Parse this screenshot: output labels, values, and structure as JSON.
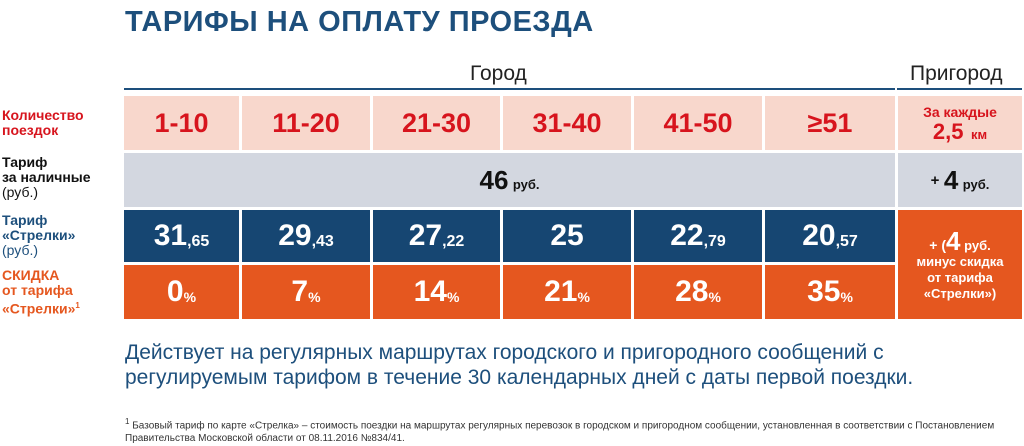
{
  "title": "ТАРИФЫ НА ОПЛАТУ ПРОЕЗДА",
  "headers": {
    "city": "Город",
    "suburb": "Пригород"
  },
  "labels": {
    "trips": [
      "Количество",
      "поездок"
    ],
    "cash": [
      "Тариф",
      "за наличные",
      "(руб.)"
    ],
    "strelka": [
      "Тариф",
      "«Стрелки»",
      "(руб.)"
    ],
    "discount": [
      "СКИДКА",
      "от тарифа",
      "«Стрелки»"
    ],
    "discount_footnote_mark": "1"
  },
  "ranges": [
    "1-10",
    "11-20",
    "21-30",
    "31-40",
    "41-50",
    "≥51"
  ],
  "suburb_trips": {
    "line1": "За каждые",
    "value": "2,5",
    "unit": "км"
  },
  "cash_fare": {
    "value": "46",
    "unit": "руб."
  },
  "suburb_cash": {
    "prefix": "+",
    "value": "4",
    "unit": "руб."
  },
  "strelka_fares": [
    {
      "main": "31",
      "frac": ",65"
    },
    {
      "main": "29",
      "frac": ",43"
    },
    {
      "main": "27",
      "frac": ",22"
    },
    {
      "main": "25",
      "frac": ""
    },
    {
      "main": "22",
      "frac": ",79"
    },
    {
      "main": "20",
      "frac": ",57"
    }
  ],
  "discounts": [
    {
      "value": "0",
      "unit": "%"
    },
    {
      "value": "7",
      "unit": "%"
    },
    {
      "value": "14",
      "unit": "%"
    },
    {
      "value": "21",
      "unit": "%"
    },
    {
      "value": "28",
      "unit": "%"
    },
    {
      "value": "35",
      "unit": "%"
    }
  ],
  "suburb_strelka": {
    "prefix": "+ (",
    "value": "4",
    "unit": "руб.",
    "line2": "минус скидка",
    "line3": "от тарифа",
    "line4": "«Стрелки»)"
  },
  "note": "Действует на регулярных маршрутах городского и пригородного сообщений с регулируемым тарифом в течение 30 календарных дней с даты первой поездки.",
  "footnote": {
    "mark": "1",
    "text": "Базовый тариф по карте «Стрелка» – стоимость поездки на маршрутах регулярных перевозок в городском и пригородном сообщении, установленная в соответствии с Постановлением Правительства Московской области от 08.11.2016 №834/41."
  },
  "colors": {
    "title": "#1d4f7c",
    "trips_row": "#f8d7cc",
    "trips_text": "#d7141d",
    "cash_row": "#d3d7e0",
    "strelka_row": "#164672",
    "discount_row": "#e5571f"
  }
}
